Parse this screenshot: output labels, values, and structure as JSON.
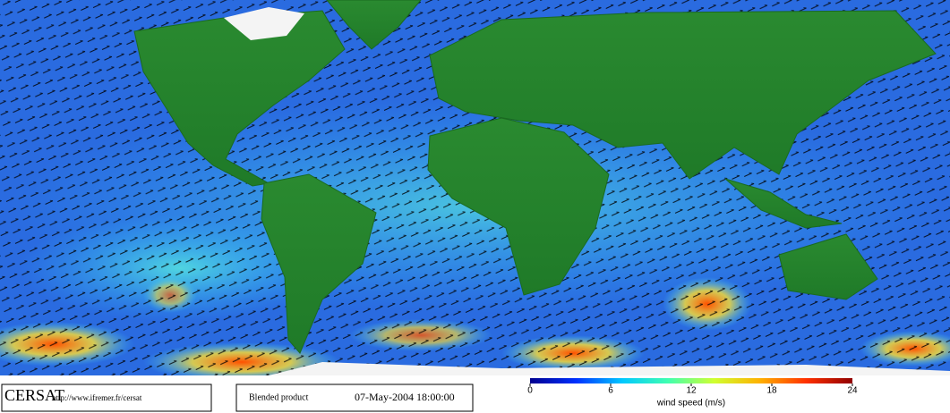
{
  "map": {
    "logo": "CERSAT",
    "url": "http://www.ifremer.fr/cersat",
    "product": "Blended product",
    "timestamp": "07-May-2004 18:00:00",
    "colorbar": {
      "label": "wind speed (m/s)",
      "lim": [
        0,
        24
      ],
      "ticks": [
        0,
        6,
        12,
        18,
        24
      ],
      "colors": [
        "#00008f",
        "#0030ff",
        "#00c8ff",
        "#40ffb0",
        "#d0ff30",
        "#ffb000",
        "#ff3000",
        "#900000"
      ]
    }
  }
}
